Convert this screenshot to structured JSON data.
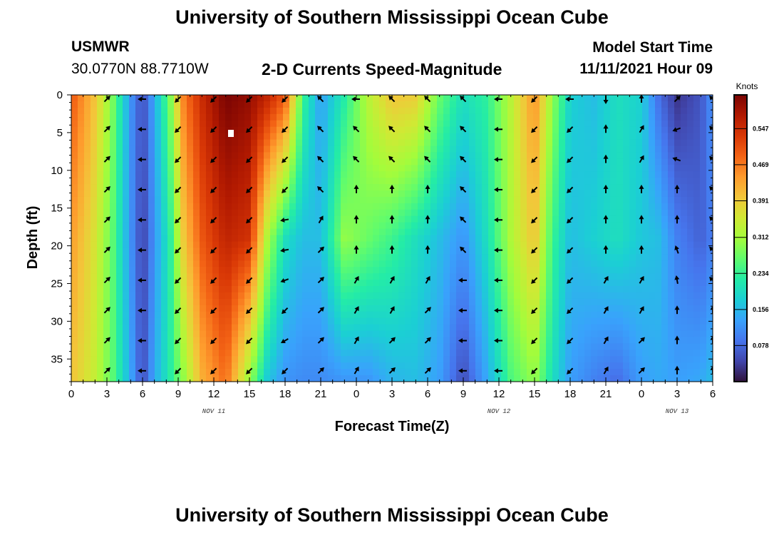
{
  "header": {
    "title": "University of Southern Mississippi Ocean Cube",
    "station": "USMWR",
    "coords": "30.0770N  88.7710W",
    "subtitle": "2-D Currents Speed-Magnitude",
    "model_start_label": "Model Start Time",
    "model_start_value": "11/11/2021 Hour 09"
  },
  "footer": {
    "title": "University of Southern Mississippi Ocean Cube"
  },
  "chart_data": {
    "type": "heatmap",
    "title": "2-D Currents Speed-Magnitude",
    "xlabel": "Forecast Time(Z)",
    "ylabel": "Depth (ft)",
    "x_hours_range": [
      0,
      54
    ],
    "ylim": [
      0,
      38
    ],
    "y_inverted": true,
    "x_tick_labels": [
      "0",
      "3",
      "6",
      "9",
      "12",
      "15",
      "18",
      "21",
      "0",
      "3",
      "6",
      "9",
      "12",
      "15",
      "18",
      "21",
      "0",
      "3",
      "6"
    ],
    "x_tick_hours": [
      0,
      3,
      6,
      9,
      12,
      15,
      18,
      21,
      24,
      27,
      30,
      33,
      36,
      39,
      42,
      45,
      48,
      51,
      54
    ],
    "y_ticks": [
      0,
      5,
      10,
      15,
      20,
      25,
      30,
      35
    ],
    "date_labels": [
      {
        "text": "NOV 11",
        "hour": 12
      },
      {
        "text": "NOV 12",
        "hour": 36
      },
      {
        "text": "NOV 13",
        "hour": 51
      }
    ],
    "colorbar": {
      "unit": "Knots",
      "range": [
        0,
        0.62
      ],
      "ticks": [
        0.078,
        0.156,
        0.234,
        0.312,
        0.391,
        0.469,
        0.547
      ],
      "tick_labels": [
        "0.078",
        "0.156",
        "0.234",
        "0.312",
        "0.391",
        "0.469",
        "0.547"
      ],
      "colormap": [
        "#30123b",
        "#4145ab",
        "#4675ed",
        "#39a2fc",
        "#1bcfd4",
        "#24eca6",
        "#61fc6c",
        "#a4fc3b",
        "#d1e834",
        "#f3c63a",
        "#fe9b2d",
        "#f36315",
        "#d93806",
        "#b11901",
        "#7a0403"
      ]
    },
    "speed_profiles": [
      {
        "hour": 0,
        "surface": 0.5,
        "mid": 0.44,
        "bottom": 0.4
      },
      {
        "hour": 2,
        "surface": 0.4,
        "mid": 0.36,
        "bottom": 0.34
      },
      {
        "hour": 3.5,
        "surface": 0.28,
        "mid": 0.26,
        "bottom": 0.26
      },
      {
        "hour": 5,
        "surface": 0.12,
        "mid": 0.12,
        "bottom": 0.14
      },
      {
        "hour": 6,
        "surface": 0.05,
        "mid": 0.04,
        "bottom": 0.05
      },
      {
        "hour": 7,
        "surface": 0.14,
        "mid": 0.12,
        "bottom": 0.14
      },
      {
        "hour": 8.3,
        "surface": 0.28,
        "mid": 0.22,
        "bottom": 0.22
      },
      {
        "hour": 9.5,
        "surface": 0.47,
        "mid": 0.4,
        "bottom": 0.3
      },
      {
        "hour": 11,
        "surface": 0.55,
        "mid": 0.5,
        "bottom": 0.42
      },
      {
        "hour": 13,
        "surface": 0.62,
        "mid": 0.56,
        "bottom": 0.48
      },
      {
        "hour": 15,
        "surface": 0.6,
        "mid": 0.54,
        "bottom": 0.3
      },
      {
        "hour": 16.5,
        "surface": 0.56,
        "mid": 0.32,
        "bottom": 0.17
      },
      {
        "hour": 18,
        "surface": 0.5,
        "mid": 0.2,
        "bottom": 0.12
      },
      {
        "hour": 19.5,
        "surface": 0.24,
        "mid": 0.16,
        "bottom": 0.11
      },
      {
        "hour": 21,
        "surface": 0.13,
        "mid": 0.16,
        "bottom": 0.11
      },
      {
        "hour": 23,
        "surface": 0.22,
        "mid": 0.3,
        "bottom": 0.12
      },
      {
        "hour": 25,
        "surface": 0.33,
        "mid": 0.27,
        "bottom": 0.12
      },
      {
        "hour": 27,
        "surface": 0.4,
        "mid": 0.24,
        "bottom": 0.15
      },
      {
        "hour": 29,
        "surface": 0.39,
        "mid": 0.2,
        "bottom": 0.16
      },
      {
        "hour": 31,
        "surface": 0.27,
        "mid": 0.16,
        "bottom": 0.13
      },
      {
        "hour": 33,
        "surface": 0.2,
        "mid": 0.12,
        "bottom": 0.05
      },
      {
        "hour": 35,
        "surface": 0.23,
        "mid": 0.2,
        "bottom": 0.14
      },
      {
        "hour": 37,
        "surface": 0.33,
        "mid": 0.32,
        "bottom": 0.25
      },
      {
        "hour": 39,
        "surface": 0.45,
        "mid": 0.4,
        "bottom": 0.3
      },
      {
        "hour": 40.5,
        "surface": 0.3,
        "mid": 0.24,
        "bottom": 0.2
      },
      {
        "hour": 42,
        "surface": 0.18,
        "mid": 0.16,
        "bottom": 0.13
      },
      {
        "hour": 44,
        "surface": 0.16,
        "mid": 0.18,
        "bottom": 0.1
      },
      {
        "hour": 46,
        "surface": 0.2,
        "mid": 0.2,
        "bottom": 0.08
      },
      {
        "hour": 48,
        "surface": 0.18,
        "mid": 0.17,
        "bottom": 0.13
      },
      {
        "hour": 49.5,
        "surface": 0.08,
        "mid": 0.16,
        "bottom": 0.14
      },
      {
        "hour": 51,
        "surface": 0.03,
        "mid": 0.1,
        "bottom": 0.13
      },
      {
        "hour": 53,
        "surface": 0.06,
        "mid": 0.07,
        "bottom": 0.14
      },
      {
        "hour": 54,
        "surface": 0.12,
        "mid": 0.1,
        "bottom": 0.16
      }
    ],
    "vector_hours": [
      3,
      6,
      9,
      12,
      15,
      18,
      21,
      24,
      27,
      30,
      33,
      36,
      39,
      42,
      45,
      48,
      51,
      54
    ],
    "vector_depths": [
      0,
      4,
      8,
      12,
      16,
      20,
      24,
      28,
      32,
      36
    ],
    "vector_directions_deg": [
      [
        315,
        315,
        315,
        315,
        315,
        315,
        315,
        315,
        315,
        315
      ],
      [
        180,
        180,
        180,
        180,
        180,
        180,
        180,
        180,
        180,
        180
      ],
      [
        135,
        135,
        135,
        135,
        135,
        135,
        135,
        135,
        135,
        135
      ],
      [
        135,
        135,
        135,
        135,
        135,
        135,
        135,
        135,
        135,
        135
      ],
      [
        135,
        135,
        135,
        135,
        135,
        135,
        135,
        135,
        135,
        135
      ],
      [
        135,
        135,
        135,
        135,
        170,
        170,
        160,
        135,
        150,
        135
      ],
      [
        225,
        225,
        225,
        225,
        300,
        315,
        315,
        315,
        315,
        315
      ],
      [
        180,
        225,
        225,
        270,
        270,
        270,
        300,
        300,
        300,
        300
      ],
      [
        225,
        225,
        225,
        270,
        270,
        270,
        300,
        300,
        315,
        315
      ],
      [
        225,
        225,
        225,
        270,
        270,
        270,
        300,
        315,
        315,
        315
      ],
      [
        225,
        225,
        225,
        225,
        225,
        225,
        180,
        180,
        180,
        180
      ],
      [
        180,
        180,
        180,
        180,
        180,
        180,
        180,
        180,
        180,
        180
      ],
      [
        135,
        135,
        135,
        135,
        135,
        135,
        135,
        135,
        135,
        135
      ],
      [
        180,
        135,
        135,
        135,
        135,
        135,
        135,
        135,
        135,
        135
      ],
      [
        90,
        270,
        270,
        270,
        270,
        270,
        300,
        300,
        300,
        300
      ],
      [
        270,
        300,
        300,
        270,
        270,
        270,
        300,
        300,
        315,
        315
      ],
      [
        315,
        160,
        200,
        270,
        270,
        250,
        260,
        270,
        270,
        270
      ],
      [
        225,
        225,
        225,
        225,
        225,
        225,
        225,
        270,
        270,
        270
      ]
    ]
  }
}
